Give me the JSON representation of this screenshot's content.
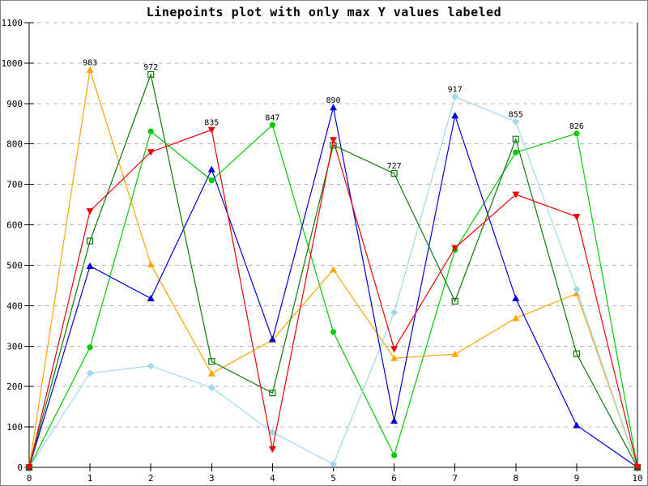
{
  "chart_data": {
    "type": "line",
    "subtype": "linespoints",
    "title": "Linepoints plot with only max Y values labeled",
    "xlabel": "",
    "ylabel": "",
    "xlim": [
      0,
      10
    ],
    "ylim": [
      0,
      1100
    ],
    "x": [
      0,
      1,
      2,
      3,
      4,
      5,
      6,
      7,
      8,
      9,
      10
    ],
    "x_tick_labels": [
      "0",
      "1",
      "2",
      "3",
      "4",
      "5",
      "6",
      "7",
      "8",
      "9",
      "10"
    ],
    "y_tick_labels": [
      "0",
      "100",
      "200",
      "300",
      "400",
      "500",
      "600",
      "700",
      "800",
      "900",
      "1000",
      "1100"
    ],
    "grid": "horizontal-dashed",
    "legend": "none",
    "background": "#ffffff",
    "series": [
      {
        "name": "green-circles",
        "color": "#00cc00",
        "marker": "circle-filled",
        "values": [
          0,
          297,
          831,
          710,
          847,
          335,
          30,
          538,
          779,
          826,
          0
        ]
      },
      {
        "name": "orange-triangles",
        "color": "#ffa500",
        "marker": "triangle-up-filled",
        "values": [
          0,
          983,
          502,
          232,
          315,
          489,
          270,
          280,
          369,
          430,
          0
        ]
      },
      {
        "name": "light-blue-diamonds",
        "color": "#a0d8ec",
        "marker": "diamond-filled",
        "values": [
          0,
          233,
          251,
          197,
          87,
          8,
          383,
          917,
          855,
          440,
          0
        ]
      },
      {
        "name": "blue-triangles",
        "color": "#0000d8",
        "marker": "triangle-up-filled",
        "values": [
          0,
          498,
          418,
          737,
          317,
          890,
          115,
          870,
          418,
          104,
          0
        ]
      },
      {
        "name": "dark-green-squares",
        "color": "#0a7a0a",
        "marker": "square-open",
        "values": [
          0,
          560,
          972,
          262,
          184,
          797,
          727,
          411,
          812,
          281,
          0
        ]
      },
      {
        "name": "red-triangles",
        "color": "#f00000",
        "marker": "triangle-down-filled",
        "values": [
          0,
          634,
          780,
          835,
          45,
          810,
          293,
          543,
          675,
          620,
          0
        ]
      }
    ],
    "max_labels": [
      {
        "x": 1,
        "value": 983,
        "series": "orange-triangles"
      },
      {
        "x": 2,
        "value": 972,
        "series": "dark-green-squares"
      },
      {
        "x": 3,
        "value": 835,
        "series": "red-triangles"
      },
      {
        "x": 4,
        "value": 847,
        "series": "green-circles"
      },
      {
        "x": 5,
        "value": 890,
        "series": "blue-triangles"
      },
      {
        "x": 6,
        "value": 727,
        "series": "dark-green-squares"
      },
      {
        "x": 7,
        "value": 917,
        "series": "light-blue-diamonds"
      },
      {
        "x": 8,
        "value": 855,
        "series": "light-blue-diamonds"
      },
      {
        "x": 9,
        "value": 826,
        "series": "green-circles"
      }
    ]
  }
}
